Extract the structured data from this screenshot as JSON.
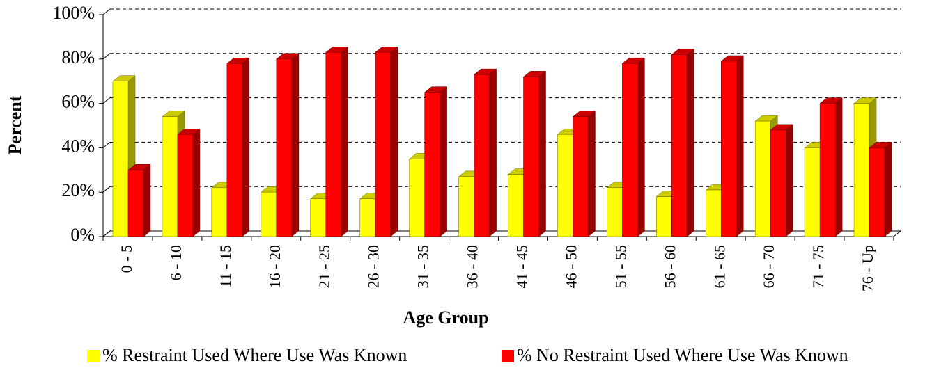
{
  "chart_data": {
    "type": "bar3d",
    "y_label": "Percent",
    "x_label": "Age Group",
    "categories": [
      "0 - 5",
      "6 - 10",
      "11 - 15",
      "16 - 20",
      "21 - 25",
      "26 - 30",
      "31 - 35",
      "36 - 40",
      "41 - 45",
      "46 - 50",
      "51 - 55",
      "56 - 60",
      "61 - 65",
      "66 - 70",
      "71 - 75",
      "76 - Up"
    ],
    "series": [
      {
        "name": "% Restraint Used Where Use Was Known",
        "color": "#ffff00",
        "values": [
          70,
          54,
          22,
          20,
          17,
          17,
          35,
          27,
          28,
          46,
          22,
          18,
          21,
          52,
          40,
          60
        ]
      },
      {
        "name": "% No Restraint Used Where Use Was Known",
        "color": "#ff0000",
        "values": [
          30,
          46,
          78,
          80,
          83,
          83,
          65,
          73,
          72,
          54,
          78,
          82,
          79,
          48,
          60,
          40
        ]
      }
    ],
    "ylim": [
      0,
      100
    ],
    "yticks": [
      {
        "value": 0,
        "label": "0%"
      },
      {
        "value": 20,
        "label": "20%"
      },
      {
        "value": 40,
        "label": "40%"
      },
      {
        "value": 60,
        "label": "60%"
      },
      {
        "value": 80,
        "label": "80%"
      },
      {
        "value": 100,
        "label": "100%"
      }
    ],
    "grid": true
  }
}
